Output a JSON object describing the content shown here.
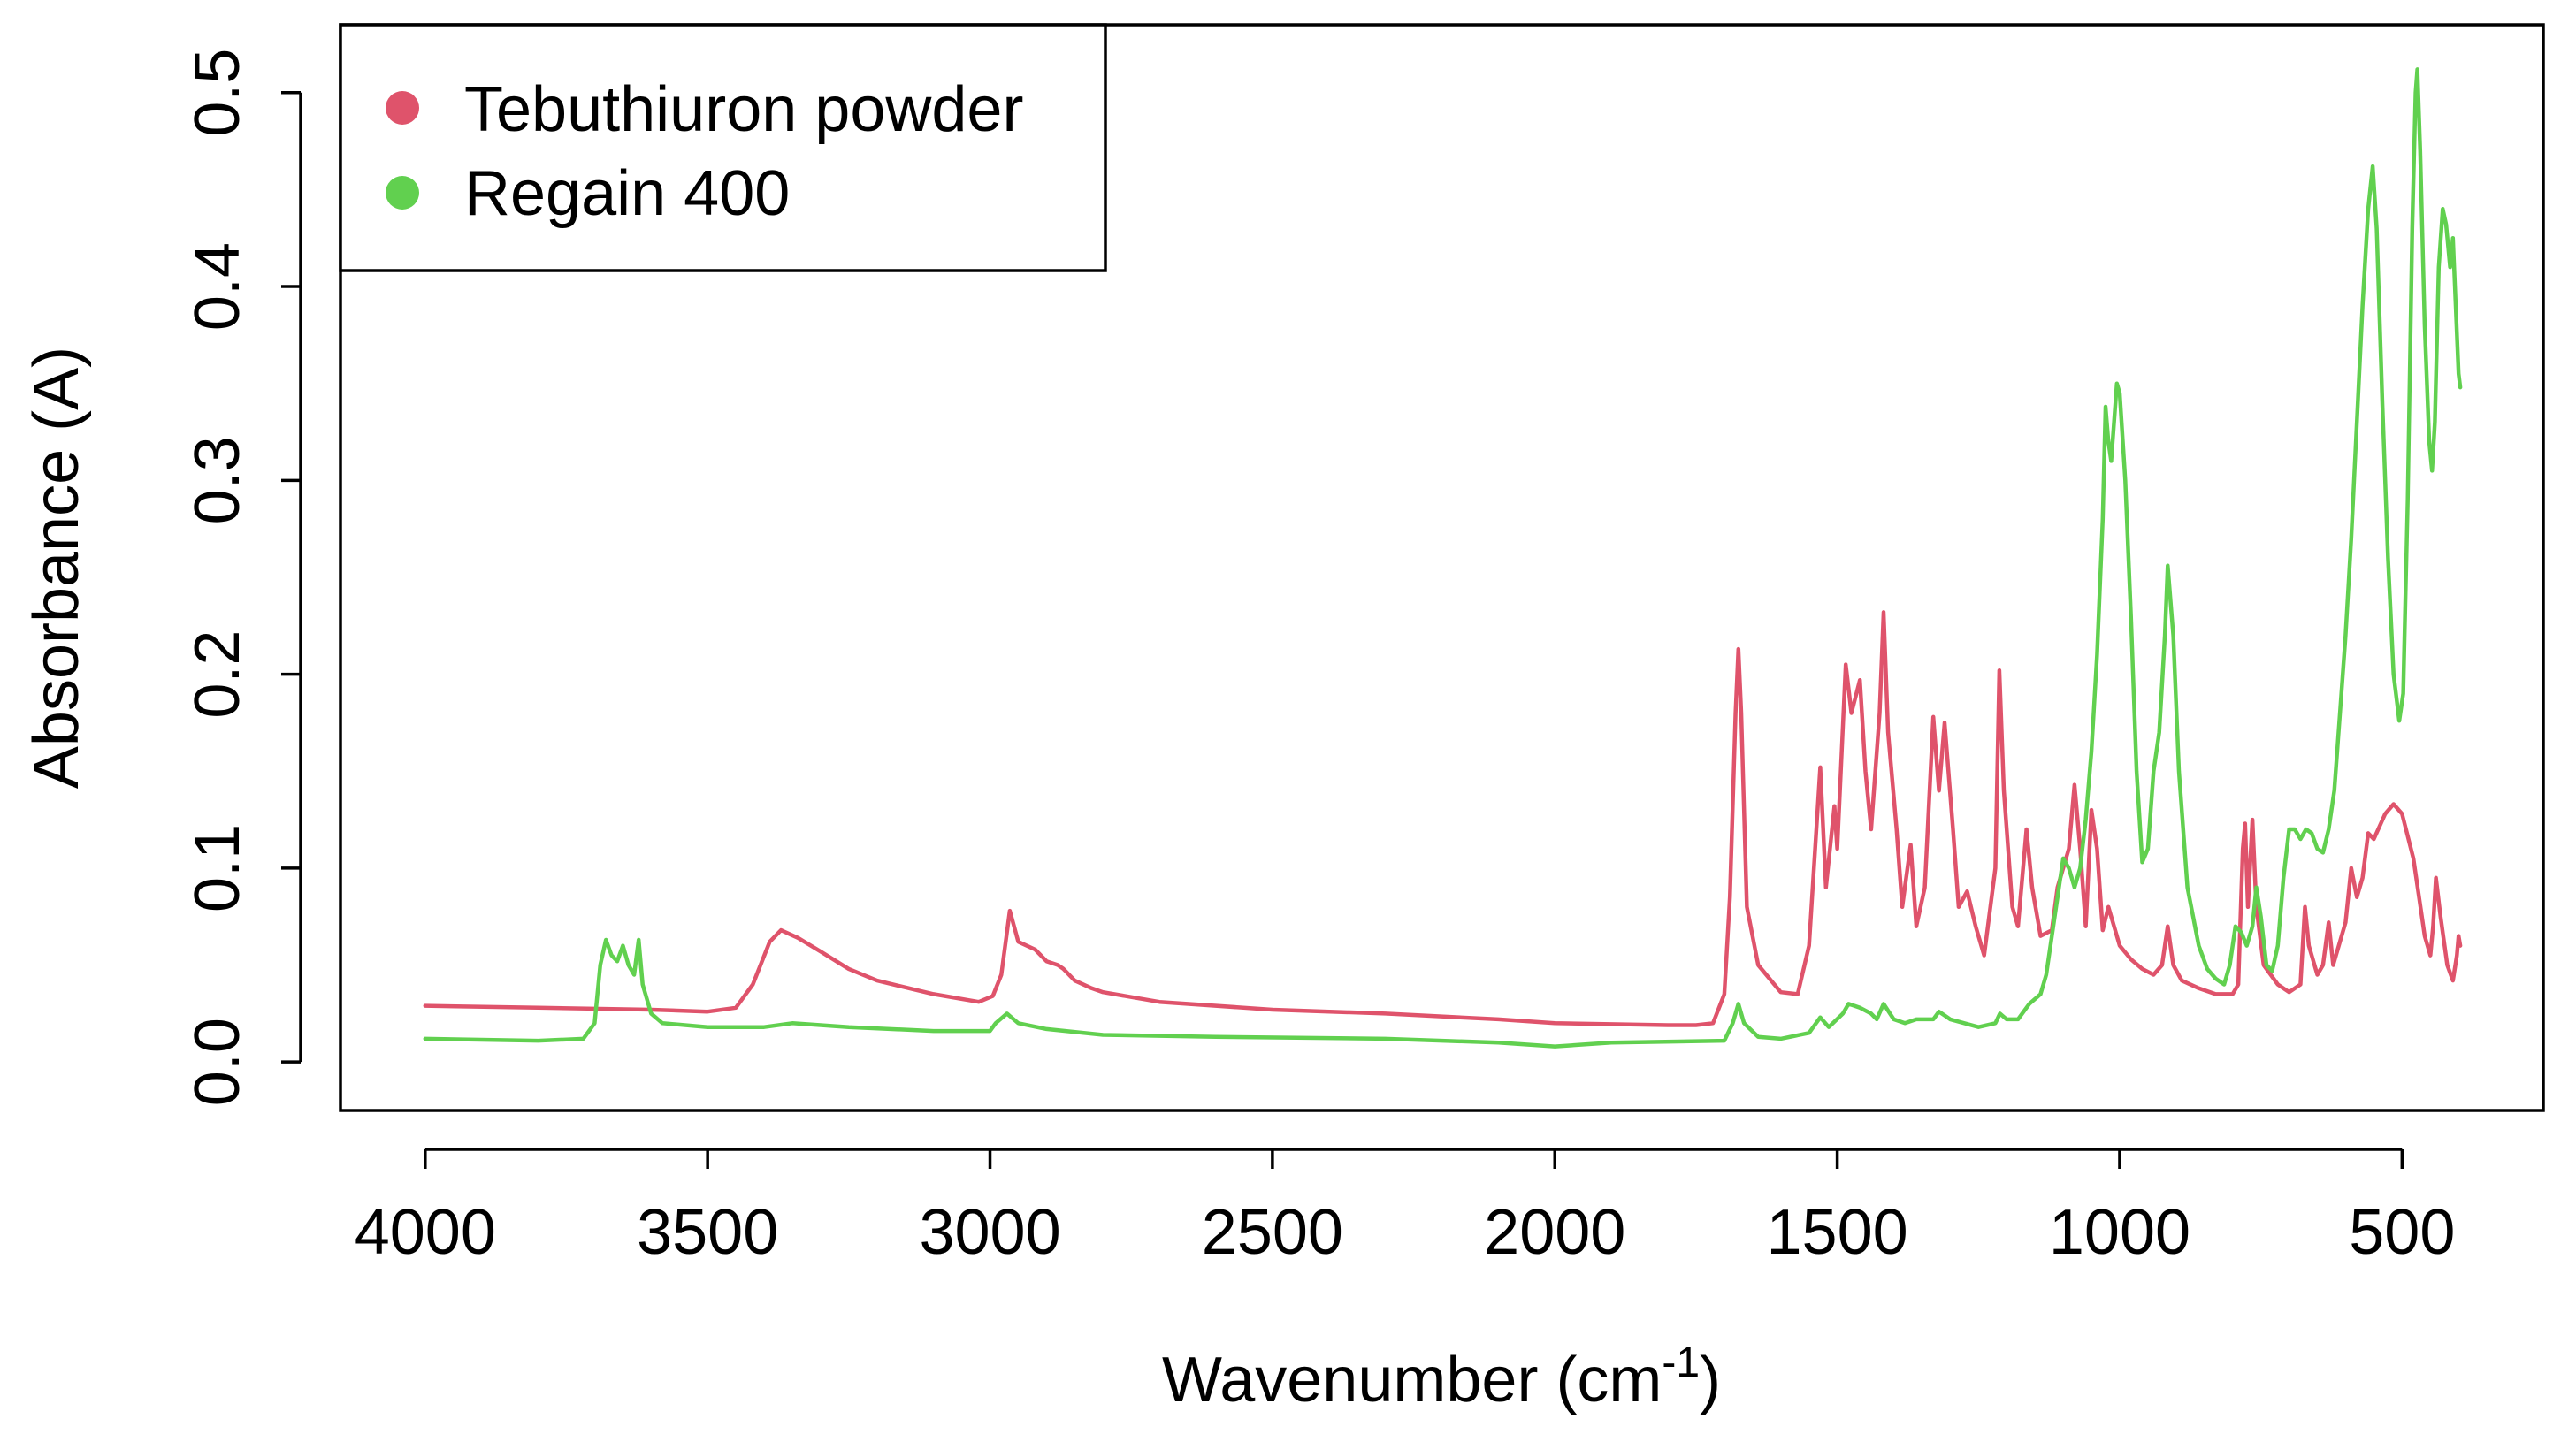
{
  "chart_data": {
    "type": "line",
    "title": "",
    "xlabel": {
      "main": "Wavenumber (cm",
      "sup": "-1",
      "close": ")"
    },
    "ylabel": "Absorbance (A)",
    "xlim": [
      4150,
      250
    ],
    "ylim": [
      -0.025,
      0.535
    ],
    "x_reversed": true,
    "x_ticks": [
      4000,
      3500,
      3000,
      2500,
      2000,
      1500,
      1000,
      500
    ],
    "x_tick_labels": [
      "4000",
      "3500",
      "3000",
      "2500",
      "2000",
      "1500",
      "1000",
      "500"
    ],
    "y_ticks": [
      0.0,
      0.1,
      0.2,
      0.3,
      0.4,
      0.5
    ],
    "y_tick_labels": [
      "0.0",
      "0.1",
      "0.2",
      "0.3",
      "0.4",
      "0.5"
    ],
    "grid": false,
    "legend": {
      "position": "top-left"
    },
    "series": [
      {
        "name": "Tebuthiuron powder",
        "color": "#DF536B",
        "points": [
          [
            4000,
            0.029
          ],
          [
            3800,
            0.028
          ],
          [
            3600,
            0.027
          ],
          [
            3500,
            0.026
          ],
          [
            3450,
            0.028
          ],
          [
            3420,
            0.04
          ],
          [
            3390,
            0.062
          ],
          [
            3370,
            0.068
          ],
          [
            3340,
            0.064
          ],
          [
            3300,
            0.057
          ],
          [
            3250,
            0.048
          ],
          [
            3200,
            0.042
          ],
          [
            3100,
            0.035
          ],
          [
            3020,
            0.031
          ],
          [
            2995,
            0.034
          ],
          [
            2980,
            0.045
          ],
          [
            2965,
            0.078
          ],
          [
            2950,
            0.062
          ],
          [
            2920,
            0.058
          ],
          [
            2900,
            0.052
          ],
          [
            2880,
            0.05
          ],
          [
            2870,
            0.048
          ],
          [
            2850,
            0.042
          ],
          [
            2820,
            0.038
          ],
          [
            2800,
            0.036
          ],
          [
            2700,
            0.031
          ],
          [
            2500,
            0.027
          ],
          [
            2300,
            0.025
          ],
          [
            2100,
            0.022
          ],
          [
            2000,
            0.02
          ],
          [
            1800,
            0.019
          ],
          [
            1750,
            0.019
          ],
          [
            1720,
            0.02
          ],
          [
            1700,
            0.035
          ],
          [
            1690,
            0.085
          ],
          [
            1680,
            0.18
          ],
          [
            1675,
            0.213
          ],
          [
            1670,
            0.18
          ],
          [
            1660,
            0.08
          ],
          [
            1640,
            0.05
          ],
          [
            1600,
            0.036
          ],
          [
            1570,
            0.035
          ],
          [
            1550,
            0.06
          ],
          [
            1530,
            0.152
          ],
          [
            1520,
            0.09
          ],
          [
            1505,
            0.132
          ],
          [
            1500,
            0.11
          ],
          [
            1485,
            0.205
          ],
          [
            1475,
            0.18
          ],
          [
            1460,
            0.197
          ],
          [
            1450,
            0.15
          ],
          [
            1440,
            0.12
          ],
          [
            1425,
            0.18
          ],
          [
            1418,
            0.232
          ],
          [
            1410,
            0.17
          ],
          [
            1395,
            0.12
          ],
          [
            1385,
            0.08
          ],
          [
            1370,
            0.112
          ],
          [
            1360,
            0.07
          ],
          [
            1345,
            0.09
          ],
          [
            1330,
            0.178
          ],
          [
            1320,
            0.14
          ],
          [
            1310,
            0.175
          ],
          [
            1295,
            0.12
          ],
          [
            1285,
            0.08
          ],
          [
            1270,
            0.088
          ],
          [
            1255,
            0.07
          ],
          [
            1240,
            0.055
          ],
          [
            1220,
            0.1
          ],
          [
            1213,
            0.202
          ],
          [
            1205,
            0.14
          ],
          [
            1190,
            0.08
          ],
          [
            1180,
            0.07
          ],
          [
            1165,
            0.12
          ],
          [
            1155,
            0.09
          ],
          [
            1140,
            0.065
          ],
          [
            1120,
            0.068
          ],
          [
            1110,
            0.09
          ],
          [
            1090,
            0.11
          ],
          [
            1080,
            0.143
          ],
          [
            1070,
            0.11
          ],
          [
            1060,
            0.07
          ],
          [
            1050,
            0.13
          ],
          [
            1040,
            0.11
          ],
          [
            1030,
            0.068
          ],
          [
            1020,
            0.08
          ],
          [
            1000,
            0.06
          ],
          [
            980,
            0.053
          ],
          [
            960,
            0.048
          ],
          [
            940,
            0.045
          ],
          [
            925,
            0.05
          ],
          [
            915,
            0.07
          ],
          [
            905,
            0.05
          ],
          [
            890,
            0.042
          ],
          [
            860,
            0.038
          ],
          [
            830,
            0.035
          ],
          [
            800,
            0.035
          ],
          [
            790,
            0.04
          ],
          [
            782,
            0.11
          ],
          [
            778,
            0.123
          ],
          [
            773,
            0.08
          ],
          [
            765,
            0.125
          ],
          [
            758,
            0.08
          ],
          [
            745,
            0.05
          ],
          [
            720,
            0.04
          ],
          [
            700,
            0.036
          ],
          [
            680,
            0.04
          ],
          [
            672,
            0.08
          ],
          [
            665,
            0.06
          ],
          [
            650,
            0.045
          ],
          [
            640,
            0.05
          ],
          [
            630,
            0.072
          ],
          [
            622,
            0.05
          ],
          [
            600,
            0.072
          ],
          [
            590,
            0.1
          ],
          [
            580,
            0.085
          ],
          [
            570,
            0.095
          ],
          [
            560,
            0.118
          ],
          [
            550,
            0.115
          ],
          [
            530,
            0.128
          ],
          [
            515,
            0.133
          ],
          [
            500,
            0.128
          ],
          [
            480,
            0.105
          ],
          [
            460,
            0.065
          ],
          [
            450,
            0.055
          ],
          [
            445,
            0.07
          ],
          [
            440,
            0.095
          ],
          [
            432,
            0.075
          ],
          [
            420,
            0.05
          ],
          [
            410,
            0.042
          ],
          [
            403,
            0.055
          ],
          [
            400,
            0.065
          ],
          [
            397,
            0.06
          ]
        ]
      },
      {
        "name": "Regain 400",
        "color": "#61D04F",
        "points": [
          [
            4000,
            0.012
          ],
          [
            3800,
            0.011
          ],
          [
            3720,
            0.012
          ],
          [
            3700,
            0.02
          ],
          [
            3690,
            0.05
          ],
          [
            3680,
            0.063
          ],
          [
            3670,
            0.055
          ],
          [
            3660,
            0.052
          ],
          [
            3650,
            0.06
          ],
          [
            3640,
            0.05
          ],
          [
            3630,
            0.045
          ],
          [
            3622,
            0.063
          ],
          [
            3615,
            0.04
          ],
          [
            3600,
            0.025
          ],
          [
            3580,
            0.02
          ],
          [
            3500,
            0.018
          ],
          [
            3400,
            0.018
          ],
          [
            3350,
            0.02
          ],
          [
            3250,
            0.018
          ],
          [
            3100,
            0.016
          ],
          [
            3000,
            0.016
          ],
          [
            2990,
            0.02
          ],
          [
            2970,
            0.025
          ],
          [
            2950,
            0.02
          ],
          [
            2900,
            0.017
          ],
          [
            2800,
            0.014
          ],
          [
            2600,
            0.013
          ],
          [
            2300,
            0.012
          ],
          [
            2100,
            0.01
          ],
          [
            2000,
            0.008
          ],
          [
            1900,
            0.01
          ],
          [
            1700,
            0.011
          ],
          [
            1685,
            0.02
          ],
          [
            1675,
            0.03
          ],
          [
            1665,
            0.02
          ],
          [
            1640,
            0.013
          ],
          [
            1600,
            0.012
          ],
          [
            1550,
            0.015
          ],
          [
            1530,
            0.023
          ],
          [
            1515,
            0.018
          ],
          [
            1490,
            0.025
          ],
          [
            1480,
            0.03
          ],
          [
            1460,
            0.028
          ],
          [
            1440,
            0.025
          ],
          [
            1430,
            0.022
          ],
          [
            1418,
            0.03
          ],
          [
            1400,
            0.022
          ],
          [
            1380,
            0.02
          ],
          [
            1360,
            0.022
          ],
          [
            1330,
            0.022
          ],
          [
            1320,
            0.026
          ],
          [
            1310,
            0.024
          ],
          [
            1300,
            0.022
          ],
          [
            1250,
            0.018
          ],
          [
            1220,
            0.02
          ],
          [
            1212,
            0.025
          ],
          [
            1200,
            0.022
          ],
          [
            1180,
            0.022
          ],
          [
            1160,
            0.03
          ],
          [
            1140,
            0.035
          ],
          [
            1130,
            0.045
          ],
          [
            1120,
            0.065
          ],
          [
            1110,
            0.085
          ],
          [
            1100,
            0.105
          ],
          [
            1090,
            0.1
          ],
          [
            1080,
            0.09
          ],
          [
            1070,
            0.1
          ],
          [
            1060,
            0.125
          ],
          [
            1050,
            0.16
          ],
          [
            1040,
            0.21
          ],
          [
            1030,
            0.28
          ],
          [
            1025,
            0.338
          ],
          [
            1020,
            0.32
          ],
          [
            1015,
            0.31
          ],
          [
            1010,
            0.33
          ],
          [
            1005,
            0.35
          ],
          [
            1000,
            0.345
          ],
          [
            990,
            0.3
          ],
          [
            980,
            0.23
          ],
          [
            970,
            0.15
          ],
          [
            960,
            0.103
          ],
          [
            950,
            0.11
          ],
          [
            940,
            0.15
          ],
          [
            930,
            0.17
          ],
          [
            920,
            0.22
          ],
          [
            915,
            0.256
          ],
          [
            905,
            0.22
          ],
          [
            895,
            0.15
          ],
          [
            880,
            0.09
          ],
          [
            860,
            0.06
          ],
          [
            845,
            0.048
          ],
          [
            830,
            0.043
          ],
          [
            815,
            0.04
          ],
          [
            805,
            0.05
          ],
          [
            795,
            0.07
          ],
          [
            785,
            0.067
          ],
          [
            775,
            0.06
          ],
          [
            765,
            0.07
          ],
          [
            758,
            0.09
          ],
          [
            750,
            0.075
          ],
          [
            740,
            0.05
          ],
          [
            730,
            0.047
          ],
          [
            720,
            0.06
          ],
          [
            710,
            0.095
          ],
          [
            700,
            0.12
          ],
          [
            690,
            0.12
          ],
          [
            680,
            0.115
          ],
          [
            670,
            0.12
          ],
          [
            660,
            0.118
          ],
          [
            650,
            0.11
          ],
          [
            640,
            0.108
          ],
          [
            630,
            0.12
          ],
          [
            620,
            0.14
          ],
          [
            610,
            0.18
          ],
          [
            600,
            0.22
          ],
          [
            590,
            0.27
          ],
          [
            580,
            0.33
          ],
          [
            570,
            0.39
          ],
          [
            560,
            0.44
          ],
          [
            552,
            0.462
          ],
          [
            545,
            0.43
          ],
          [
            535,
            0.34
          ],
          [
            525,
            0.26
          ],
          [
            515,
            0.2
          ],
          [
            505,
            0.176
          ],
          [
            498,
            0.19
          ],
          [
            490,
            0.29
          ],
          [
            482,
            0.43
          ],
          [
            476,
            0.5
          ],
          [
            473,
            0.512
          ],
          [
            468,
            0.47
          ],
          [
            460,
            0.38
          ],
          [
            452,
            0.32
          ],
          [
            447,
            0.305
          ],
          [
            442,
            0.33
          ],
          [
            435,
            0.41
          ],
          [
            428,
            0.44
          ],
          [
            422,
            0.432
          ],
          [
            415,
            0.41
          ],
          [
            410,
            0.425
          ],
          [
            405,
            0.39
          ],
          [
            400,
            0.355
          ],
          [
            397,
            0.348
          ]
        ]
      }
    ]
  }
}
